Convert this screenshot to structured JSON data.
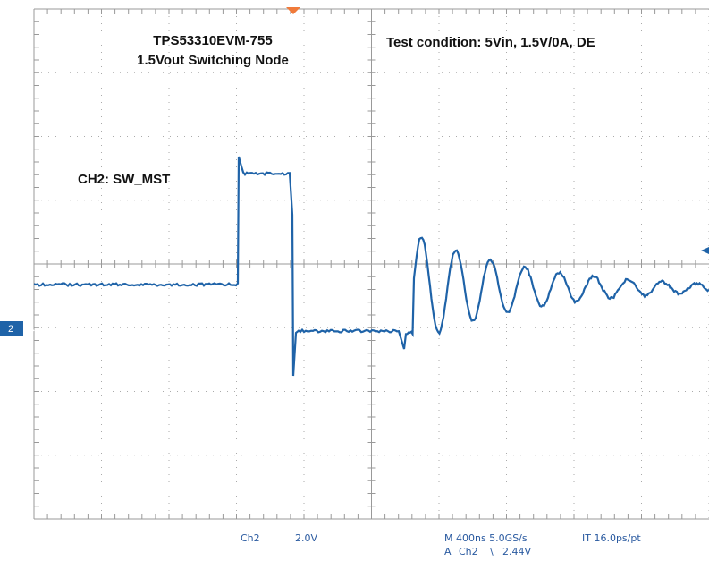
{
  "title_line_1": "TPS53310EVM-755",
  "title_line_2": "1.5Vout Switching Node",
  "test_condition": "Test condition: 5Vin, 1.5V/0A, DE",
  "channel_label": "CH2: SW_MST",
  "channel_marker": "2",
  "readout": {
    "channel": "Ch2",
    "scale": "2.0V",
    "timebase": "M 400ns 5.0GS/s",
    "interpolation": "IT 16.0ps/pt",
    "trigger_prefix": "A",
    "trigger_channel": "Ch2",
    "trigger_slope": "\\",
    "trigger_level": "2.44V"
  }
}
